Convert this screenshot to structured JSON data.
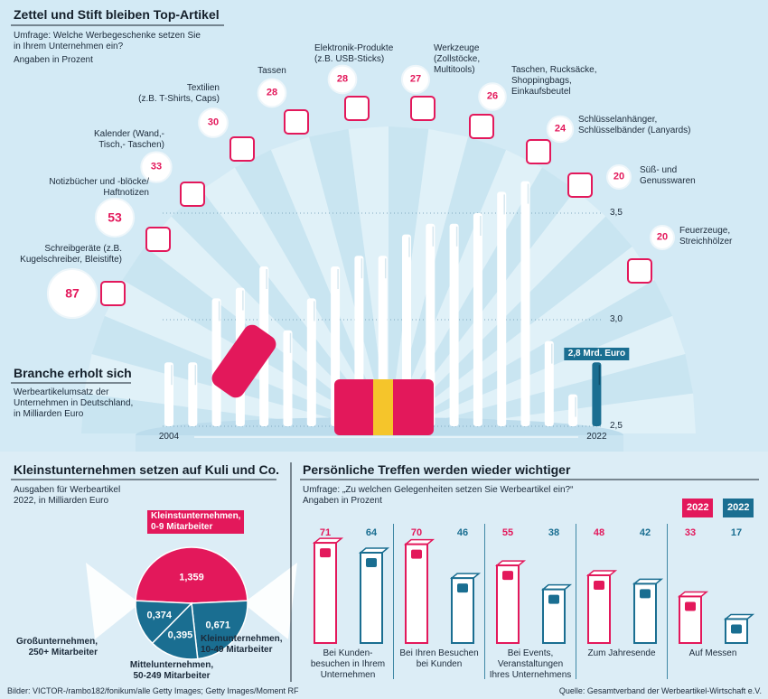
{
  "chart_data": [
    {
      "type": "bubble",
      "title": "Zettel und Stift bleiben Top-Artikel",
      "subtitle": "Umfrage: Welche Werbegeschenke setzen Sie\nin Ihrem Unternehmen ein?",
      "note": "Angaben in Prozent",
      "categories": [
        "Schreibgeräte (z.B.\nKugelschreiber, Bleistifte)",
        "Notizbücher und -blöcke/\nHaftnotizen",
        "Kalender (Wand,-\nTisch,- Taschen)",
        "Textilien\n(z.B. T-Shirts, Caps)",
        "Tassen",
        "Elektronik-Produkte\n(z.B. USB-Sticks)",
        "Werkzeuge\n(Zollstöcke,\nMultitools)",
        "Taschen, Rucksäcke,\nShoppingbags,\nEinkaufsbeutel",
        "Schlüsselanhänger,\nSchlüsselbänder (Lanyards)",
        "Süß- und\nGenusswaren",
        "Feuerzeuge,\nStreichhölzer"
      ],
      "values": [
        87,
        53,
        33,
        30,
        28,
        28,
        27,
        26,
        24,
        20,
        20
      ],
      "color": "#e3185b"
    },
    {
      "type": "bar",
      "title": "Branche erholt sich",
      "subtitle": "Werbeartikelumsatz der\nUnternehmen in Deutschland,\nin Milliarden Euro",
      "categories": [
        "2004",
        null,
        null,
        null,
        null,
        null,
        null,
        null,
        null,
        null,
        null,
        null,
        null,
        null,
        null,
        null,
        null,
        null,
        "2022"
      ],
      "values": [
        2.8,
        2.8,
        3.1,
        3.15,
        3.25,
        2.95,
        3.1,
        3.25,
        3.3,
        3.3,
        3.4,
        3.45,
        3.45,
        3.5,
        3.6,
        3.65,
        2.9,
        2.65,
        2.8
      ],
      "value_labels": [
        null,
        null,
        null,
        null,
        null,
        null,
        null,
        null,
        null,
        null,
        null,
        null,
        null,
        null,
        null,
        null,
        null,
        null,
        "2,8 Mrd. Euro"
      ],
      "colors": [
        "#ffffff",
        "#ffffff",
        "#ffffff",
        "#ffffff",
        "#ffffff",
        "#ffffff",
        "#ffffff",
        "#ffffff",
        "#ffffff",
        "#ffffff",
        "#ffffff",
        "#ffffff",
        "#ffffff",
        "#ffffff",
        "#ffffff",
        "#ffffff",
        "#ffffff",
        "#ffffff",
        "#1a6e91"
      ],
      "ylim": [
        2.5,
        3.7
      ],
      "yticks": [
        {
          "value": 2.5,
          "label": "2,5"
        },
        {
          "value": 3.0,
          "label": "3,0"
        },
        {
          "value": 3.5,
          "label": "3,5"
        }
      ],
      "grid": true
    },
    {
      "type": "pie",
      "title": "Kleinstunternehmen setzen auf Kuli und Co.",
      "subtitle": "Ausgaben für Werbeartikel\n2022, in Milliarden Euro",
      "categories": [
        "Kleinstunternehmen,\n0-9 Mitarbeiter",
        "Kleinunternehmen,\n10-49 Mitarbeiter",
        "Mittelunternehmen,\n50-249 Mitarbeiter",
        "Großunternehmen,\n250+ Mitarbeiter"
      ],
      "values": [
        1.359,
        0.671,
        0.395,
        0.374
      ],
      "value_labels": [
        "1,359",
        "0,671",
        "0,395",
        "0,374"
      ],
      "colors": [
        "#e3185b",
        "#1a6e91",
        "#1a6e91",
        "#1a6e91"
      ]
    },
    {
      "type": "grouped_bar",
      "title": "Persönliche Treffen werden wieder wichtiger",
      "subtitle": "Umfrage: „Zu welchen Gelegenheiten setzen Sie Werbeartikel ein?“",
      "note": "Angaben in Prozent",
      "categories": [
        "Bei Kunden-\nbesuchen in Ihrem\nUnternehmen",
        "Bei Ihren Besuchen\nbei Kunden",
        "Bei Events,\nVeranstaltungen\nIhres Unternehmens",
        "Zum Jahresende",
        "Auf Messen"
      ],
      "series": [
        {
          "name": "2022",
          "color": "#e3185b",
          "values": [
            71,
            70,
            55,
            48,
            33
          ]
        },
        {
          "name": "2022",
          "color": "#1a6e91",
          "values": [
            64,
            46,
            38,
            42,
            17
          ]
        }
      ],
      "ylim": [
        0,
        80
      ]
    }
  ],
  "footer": {
    "credits": "Bilder: VICTOR-/rambo182/fonikum/alle Getty Images; Getty Images/Moment RF",
    "source": "Quelle: Gesamtverband der Werbeartikel-Wirtschaft e.V."
  }
}
